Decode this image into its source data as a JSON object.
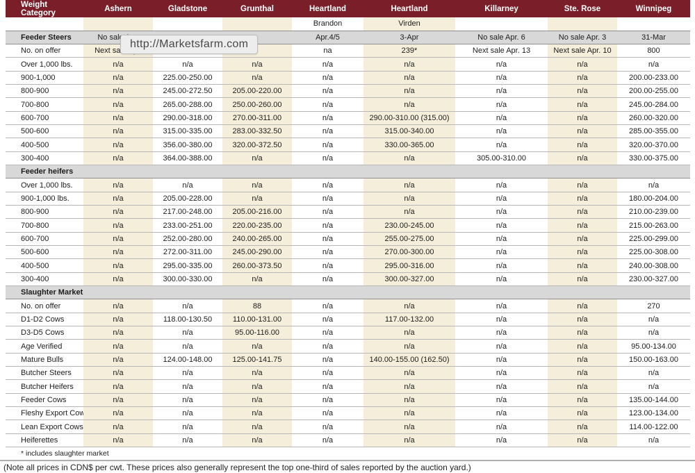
{
  "overlay": {
    "url_tooltip": "http://Marketsfarm.com"
  },
  "colors": {
    "header_bg": "#7a1f29",
    "stripe_beige": "#f4eeda",
    "section_row_bg": "#d8d8d8",
    "row_border": "#b7b7b7",
    "tooltip_bg": "#ededed"
  },
  "table": {
    "columns": [
      "Weight Category",
      "Ashern",
      "Gladstone",
      "Grunthal",
      "Heartland",
      "Heartland",
      "Killarney",
      "Ste. Rose",
      "Winnipeg"
    ],
    "subheader": [
      "",
      "",
      "",
      "",
      "Brandon",
      "Virden",
      "",
      "",
      ""
    ],
    "beige_column_indexes": [
      1,
      3,
      5,
      7
    ],
    "sections": [
      {
        "title": "Feeder Steers",
        "title_row_values": [
          "No sale Apr.",
          "",
          "",
          "Apr.4/5",
          "3-Apr",
          "No sale Apr. 6",
          "No sale Apr. 3",
          "31-Mar"
        ],
        "rows": [
          {
            "label": "No. on offer",
            "values": [
              "Next sale Apr.",
              "",
              "",
              "na",
              "239*",
              "Next sale Apr. 13",
              "Next sale Apr. 10",
              "800"
            ]
          },
          {
            "label": "Over 1,000 lbs.",
            "values": [
              "n/a",
              "n/a",
              "n/a",
              "n/a",
              "n/a",
              "n/a",
              "n/a",
              "n/a"
            ]
          },
          {
            "label": "900-1,000",
            "values": [
              "n/a",
              "225.00-250.00",
              "n/a",
              "n/a",
              "n/a",
              "n/a",
              "n/a",
              "200.00-233.00"
            ]
          },
          {
            "label": "800-900",
            "values": [
              "n/a",
              "245.00-272.50",
              "205.00-220.00",
              "n/a",
              "n/a",
              "n/a",
              "n/a",
              "200.00-255.00"
            ]
          },
          {
            "label": "700-800",
            "values": [
              "n/a",
              "265.00-288.00",
              "250.00-260.00",
              "n/a",
              "n/a",
              "n/a",
              "n/a",
              "245.00-284.00"
            ]
          },
          {
            "label": "600-700",
            "values": [
              "n/a",
              "290.00-318.00",
              "270.00-311.00",
              "n/a",
              "290.00-310.00 (315.00)",
              "n/a",
              "n/a",
              "260.00-320.00"
            ]
          },
          {
            "label": "500-600",
            "values": [
              "n/a",
              "315.00-335.00",
              "283.00-332.50",
              "n/a",
              "315.00-340.00",
              "n/a",
              "n/a",
              "285.00-355.00"
            ]
          },
          {
            "label": "400-500",
            "values": [
              "n/a",
              "356.00-380.00",
              "320.00-372.50",
              "n/a",
              "330.00-365.00",
              "n/a",
              "n/a",
              "320.00-370.00"
            ]
          },
          {
            "label": "300-400",
            "values": [
              "n/a",
              "364.00-388.00",
              "n/a",
              "n/a",
              "n/a",
              "305.00-310.00",
              "n/a",
              "330.00-375.00"
            ]
          }
        ]
      },
      {
        "title": "Feeder heifers",
        "title_row_values": [
          "",
          "",
          "",
          "",
          "",
          "",
          "",
          ""
        ],
        "rows": [
          {
            "label": "Over 1,000 lbs.",
            "values": [
              "n/a",
              "n/a",
              "n/a",
              "n/a",
              "n/a",
              "n/a",
              "n/a",
              "n/a"
            ]
          },
          {
            "label": "900-1,000 lbs.",
            "values": [
              "n/a",
              "205.00-228.00",
              "n/a",
              "n/a",
              "n/a",
              "n/a",
              "n/a",
              "180.00-204.00"
            ]
          },
          {
            "label": "800-900",
            "values": [
              "n/a",
              "217.00-248.00",
              "205.00-216.00",
              "n/a",
              "n/a",
              "n/a",
              "n/a",
              "210.00-239.00"
            ]
          },
          {
            "label": "700-800",
            "values": [
              "n/a",
              "233.00-251.00",
              "220.00-235.00",
              "n/a",
              "230.00-245.00",
              "n/a",
              "n/a",
              "215.00-263.00"
            ]
          },
          {
            "label": "600-700",
            "values": [
              "n/a",
              "252.00-280.00",
              "240.00-265.00",
              "n/a",
              "255.00-275.00",
              "n/a",
              "n/a",
              "225.00-299.00"
            ]
          },
          {
            "label": "500-600",
            "values": [
              "n/a",
              "272.00-311.00",
              "245.00-290.00",
              "n/a",
              "270.00-300.00",
              "n/a",
              "n/a",
              "225.00-308.00"
            ]
          },
          {
            "label": "400-500",
            "values": [
              "n/a",
              "295.00-335.00",
              "260.00-373.50",
              "n/a",
              "295.00-316.00",
              "n/a",
              "n/a",
              "240.00-308.00"
            ]
          },
          {
            "label": "300-400",
            "values": [
              "n/a",
              "300.00-330.00",
              "n/a",
              "n/a",
              "300.00-327.00",
              "n/a",
              "n/a",
              "230.00-327.00"
            ]
          }
        ]
      },
      {
        "title": "Slaughter Market",
        "title_row_values": [
          "",
          "",
          "",
          "",
          "",
          "",
          "",
          ""
        ],
        "rows": [
          {
            "label": "No. on offer",
            "values": [
              "n/a",
              "n/a",
              "88",
              "n/a",
              "n/a",
              "n/a",
              "n/a",
              "270"
            ]
          },
          {
            "label": "D1-D2 Cows",
            "values": [
              "n/a",
              "118.00-130.50",
              "110.00-131.00",
              "n/a",
              "117.00-132.00",
              "n/a",
              "n/a",
              "n/a"
            ]
          },
          {
            "label": "D3-D5 Cows",
            "values": [
              "n/a",
              "n/a",
              "95.00-116.00",
              "n/a",
              "n/a",
              "n/a",
              "n/a",
              "n/a"
            ]
          },
          {
            "label": "Age Verified",
            "values": [
              "n/a",
              "n/a",
              "n/a",
              "n/a",
              "n/a",
              "n/a",
              "n/a",
              "95.00-134.00"
            ]
          },
          {
            "label": "Mature Bulls",
            "values": [
              "n/a",
              "124.00-148.00",
              "125.00-141.75",
              "n/a",
              "140.00-155.00 (162.50)",
              "n/a",
              "n/a",
              "150.00-163.00"
            ]
          },
          {
            "label": "Butcher Steers",
            "values": [
              "n/a",
              "n/a",
              "n/a",
              "n/a",
              "n/a",
              "n/a",
              "n/a",
              "n/a"
            ]
          },
          {
            "label": "Butcher Heifers",
            "values": [
              "n/a",
              "n/a",
              "n/a",
              "n/a",
              "n/a",
              "n/a",
              "n/a",
              "n/a"
            ]
          },
          {
            "label": "Feeder Cows",
            "values": [
              "n/a",
              "n/a",
              "n/a",
              "n/a",
              "n/a",
              "n/a",
              "n/a",
              "135.00-144.00"
            ]
          },
          {
            "label": "Fleshy Export Cows",
            "values": [
              "n/a",
              "n/a",
              "n/a",
              "n/a",
              "n/a",
              "n/a",
              "n/a",
              "123.00-134.00"
            ]
          },
          {
            "label": "Lean Export Cows",
            "values": [
              "n/a",
              "n/a",
              "n/a",
              "n/a",
              "n/a",
              "n/a",
              "n/a",
              "114.00-122.00"
            ]
          },
          {
            "label": "Heiferettes",
            "values": [
              "n/a",
              "n/a",
              "n/a",
              "n/a",
              "n/a",
              "n/a",
              "n/a",
              "n/a"
            ]
          }
        ]
      }
    ],
    "footnote": "* includes slaughter market",
    "note": "(Note all prices in CDN$ per cwt. These prices also generally represent the top one-third of sales reported by the auction yard.)"
  }
}
